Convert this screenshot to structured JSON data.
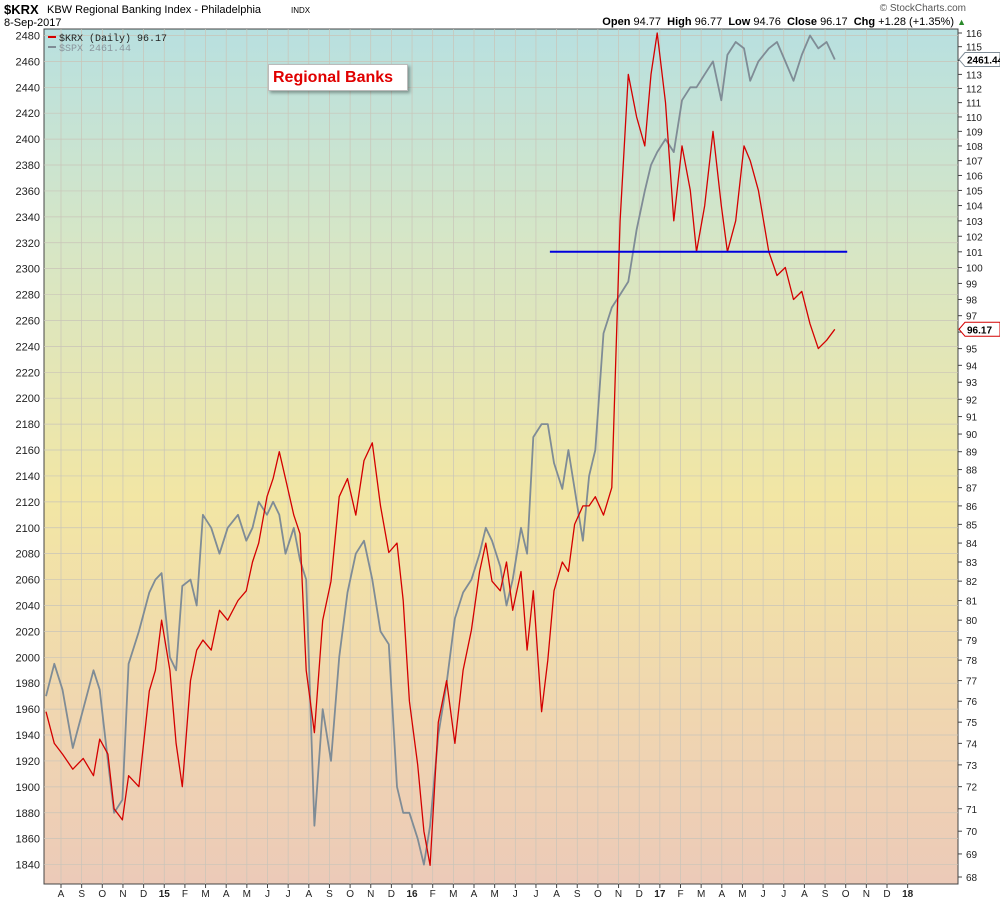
{
  "header": {
    "symbol": "$KRX",
    "title": "KBW Regional Banking Index - Philadelphia",
    "exchange": "INDX",
    "date": "8-Sep-2017",
    "logo": "© StockCharts.com",
    "open_label": "Open",
    "open": "94.77",
    "high_label": "High",
    "high": "96.77",
    "low_label": "Low",
    "low": "94.76",
    "close_label": "Close",
    "close": "96.17",
    "chg_label": "Chg",
    "chg": "+1.28 (+1.35%)",
    "chg_arrow": "▲"
  },
  "annotation": {
    "text": "Regional Banks",
    "color": "#e00000"
  },
  "colors": {
    "krx": "#d40000",
    "spx": "#7f8c96",
    "support": "#0000dd"
  },
  "chart_data": {
    "type": "line",
    "legend": [
      {
        "name": "$KRX (Daily) 96.17",
        "color": "#d40000"
      },
      {
        "name": "$SPX 2461.44",
        "color": "#7f8c96"
      }
    ],
    "x_tick_labels": [
      "A",
      "S",
      "O",
      "N",
      "D",
      "15",
      "F",
      "M",
      "A",
      "M",
      "J",
      "J",
      "A",
      "S",
      "O",
      "N",
      "D",
      "16",
      "F",
      "M",
      "A",
      "M",
      "J",
      "J",
      "A",
      "S",
      "O",
      "N",
      "D",
      "17",
      "F",
      "M",
      "A",
      "M",
      "J",
      "J",
      "A",
      "S",
      "O",
      "N",
      "D",
      "18"
    ],
    "left_axis": {
      "ylim": [
        1825,
        2485
      ],
      "ticks": [
        1840,
        1860,
        1880,
        1900,
        1920,
        1940,
        1960,
        1980,
        2000,
        2020,
        2040,
        2060,
        2080,
        2100,
        2120,
        2140,
        2160,
        2180,
        2200,
        2220,
        2240,
        2260,
        2280,
        2300,
        2320,
        2340,
        2360,
        2380,
        2400,
        2420,
        2440,
        2460,
        2480
      ]
    },
    "right_axis": {
      "ticks": [
        68,
        69,
        70,
        71,
        72,
        73,
        74,
        75,
        76,
        77,
        78,
        79,
        80,
        81,
        82,
        83,
        84,
        85,
        86,
        87,
        88,
        89,
        90,
        91,
        92,
        93,
        94,
        95,
        96,
        97,
        98,
        99,
        100,
        101,
        102,
        103,
        104,
        105,
        106,
        107,
        108,
        109,
        110,
        111,
        112,
        113,
        114,
        115,
        116
      ],
      "log_scale": true
    },
    "last_value_tags": {
      "spx": "2461.44",
      "krx": "96.17"
    },
    "series": [
      {
        "name": "$KRX",
        "axis": "right",
        "x": [
          0,
          0.4,
          0.8,
          1.3,
          1.8,
          2.3,
          2.6,
          3.0,
          3.3,
          3.7,
          4.0,
          4.5,
          5.0,
          5.3,
          5.6,
          6.0,
          6.3,
          6.6,
          7.0,
          7.3,
          7.6,
          8.0,
          8.4,
          8.8,
          9.3,
          9.7,
          10.0,
          10.3,
          10.7,
          11.0,
          11.3,
          11.6,
          12.0,
          12.3,
          12.6,
          13.0,
          13.4,
          13.8,
          14.2,
          14.6,
          15.0,
          15.4,
          15.8,
          16.2,
          16.6,
          17.0,
          17.3,
          17.6,
          18.0,
          18.3,
          18.6,
          19.0,
          19.4,
          19.8,
          20.2,
          20.6,
          21.0,
          21.3,
          21.6,
          22.0,
          22.3,
          22.6,
          23.0,
          23.3,
          23.6,
          24.0,
          24.3,
          24.6,
          25.0,
          25.3,
          25.6,
          26.0,
          26.3,
          26.6,
          27.0,
          27.4,
          27.8,
          28.2,
          28.6,
          29.0,
          29.3,
          29.6,
          30.0,
          30.4,
          30.8,
          31.2,
          31.5,
          31.9,
          32.3,
          32.7,
          33.0,
          33.4,
          33.8,
          34.1,
          34.5,
          35.0,
          35.4,
          35.8,
          36.2,
          36.6,
          37.0,
          37.4,
          37.8,
          38.2
        ],
        "y": [
          75.5,
          74.0,
          73.5,
          72.8,
          73.3,
          72.5,
          74.2,
          73.5,
          71.0,
          70.5,
          72.5,
          72.0,
          76.5,
          77.5,
          80.0,
          77.5,
          74.0,
          72.0,
          77.0,
          78.5,
          79.0,
          78.5,
          80.5,
          80.0,
          81.0,
          81.5,
          83.0,
          84.0,
          86.5,
          87.5,
          89.0,
          87.5,
          85.5,
          84.5,
          77.5,
          74.5,
          80.0,
          82.0,
          86.5,
          87.5,
          85.5,
          88.5,
          89.5,
          86.0,
          83.5,
          84.0,
          81.0,
          76.0,
          73.0,
          70.0,
          68.5,
          75.0,
          77.0,
          74.0,
          77.5,
          79.5,
          82.5,
          84.0,
          82.0,
          81.5,
          83.0,
          80.5,
          82.5,
          78.5,
          81.5,
          75.5,
          78.0,
          81.5,
          83.0,
          82.5,
          85.0,
          86.0,
          86.0,
          86.5,
          85.5,
          87.0,
          103.0,
          113.0,
          110.0,
          108.0,
          113.0,
          116.0,
          111.0,
          103.0,
          108.0,
          105.0,
          101.0,
          104.0,
          109.0,
          104.0,
          101.0,
          103.0,
          108.0,
          107.0,
          105.0,
          101.0,
          99.5,
          100.0,
          98.0,
          98.5,
          96.5,
          95.0,
          95.5,
          96.17
        ]
      },
      {
        "name": "$SPX",
        "axis": "left",
        "x": [
          0,
          0.4,
          0.8,
          1.3,
          1.8,
          2.3,
          2.6,
          3.0,
          3.3,
          3.7,
          4.0,
          4.5,
          5.0,
          5.3,
          5.6,
          6.0,
          6.3,
          6.6,
          7.0,
          7.3,
          7.6,
          8.0,
          8.4,
          8.8,
          9.3,
          9.7,
          10.0,
          10.3,
          10.7,
          11.0,
          11.3,
          11.6,
          12.0,
          12.3,
          12.6,
          13.0,
          13.4,
          13.8,
          14.2,
          14.6,
          15.0,
          15.4,
          15.8,
          16.2,
          16.6,
          17.0,
          17.3,
          17.6,
          18.0,
          18.3,
          18.6,
          19.0,
          19.4,
          19.8,
          20.2,
          20.6,
          21.0,
          21.3,
          21.6,
          22.0,
          22.3,
          22.6,
          23.0,
          23.3,
          23.6,
          24.0,
          24.3,
          24.6,
          25.0,
          25.3,
          25.6,
          26.0,
          26.3,
          26.6,
          27.0,
          27.4,
          27.8,
          28.2,
          28.6,
          29.0,
          29.3,
          29.6,
          30.0,
          30.4,
          30.8,
          31.2,
          31.5,
          31.9,
          32.3,
          32.7,
          33.0,
          33.4,
          33.8,
          34.1,
          34.5,
          35.0,
          35.4,
          35.8,
          36.2,
          36.6,
          37.0,
          37.4,
          37.8,
          38.2
        ],
        "y": [
          1970,
          1995,
          1975,
          1930,
          1960,
          1990,
          1975,
          1920,
          1880,
          1890,
          1995,
          2020,
          2050,
          2060,
          2065,
          2000,
          1990,
          2055,
          2060,
          2040,
          2110,
          2100,
          2080,
          2100,
          2110,
          2090,
          2100,
          2120,
          2110,
          2120,
          2110,
          2080,
          2100,
          2075,
          2060,
          1870,
          1960,
          1920,
          2000,
          2050,
          2080,
          2090,
          2060,
          2020,
          2010,
          1900,
          1880,
          1880,
          1860,
          1840,
          1870,
          1940,
          1980,
          2030,
          2050,
          2060,
          2080,
          2100,
          2090,
          2070,
          2040,
          2060,
          2100,
          2080,
          2170,
          2180,
          2180,
          2150,
          2130,
          2160,
          2130,
          2090,
          2140,
          2160,
          2250,
          2270,
          2280,
          2290,
          2330,
          2360,
          2380,
          2390,
          2400,
          2390,
          2430,
          2440,
          2440,
          2450,
          2460,
          2430,
          2465,
          2475,
          2470,
          2445,
          2460,
          2470,
          2475,
          2460,
          2445,
          2465,
          2480,
          2470,
          2475,
          2461.44
        ]
      },
      {
        "name": "support",
        "axis": "right",
        "x": [
          24.4,
          38.8
        ],
        "y": [
          101.0,
          101.0
        ]
      }
    ],
    "grid": true,
    "background": "vertical gradient teal (top) to yellow (middle) to tan (bottom)"
  }
}
